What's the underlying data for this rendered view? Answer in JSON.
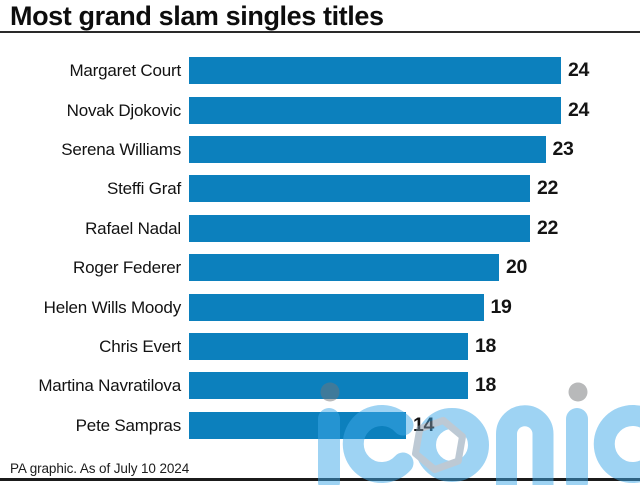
{
  "title": "Most grand slam singles titles",
  "footer": "PA graphic. As of July 10 2024",
  "watermark": {
    "text": "iconic"
  },
  "colors": {
    "bar": "#0c80bd",
    "rule": "#2a2a2a",
    "watermark_blue": "#3fa8e8",
    "watermark_dot_gray": "#737678",
    "watermark_hexagon": "#7e95aa",
    "text": "#121212"
  },
  "chart_data": {
    "type": "bar",
    "orientation": "horizontal",
    "title": "Most grand slam singles titles",
    "categories": [
      "Margaret Court",
      "Novak Djokovic",
      "Serena Williams",
      "Steffi Graf",
      "Rafael Nadal",
      "Roger Federer",
      "Helen Wills Moody",
      "Chris Evert",
      "Martina Navratilova",
      "Pete Sampras"
    ],
    "values": [
      24,
      24,
      23,
      22,
      22,
      20,
      19,
      18,
      18,
      14
    ],
    "xlabel": "",
    "ylabel": "",
    "xlim": [
      0,
      24
    ],
    "grid": false,
    "legend": false,
    "value_labels": true,
    "source": "PA graphic. As of July 10 2024"
  }
}
